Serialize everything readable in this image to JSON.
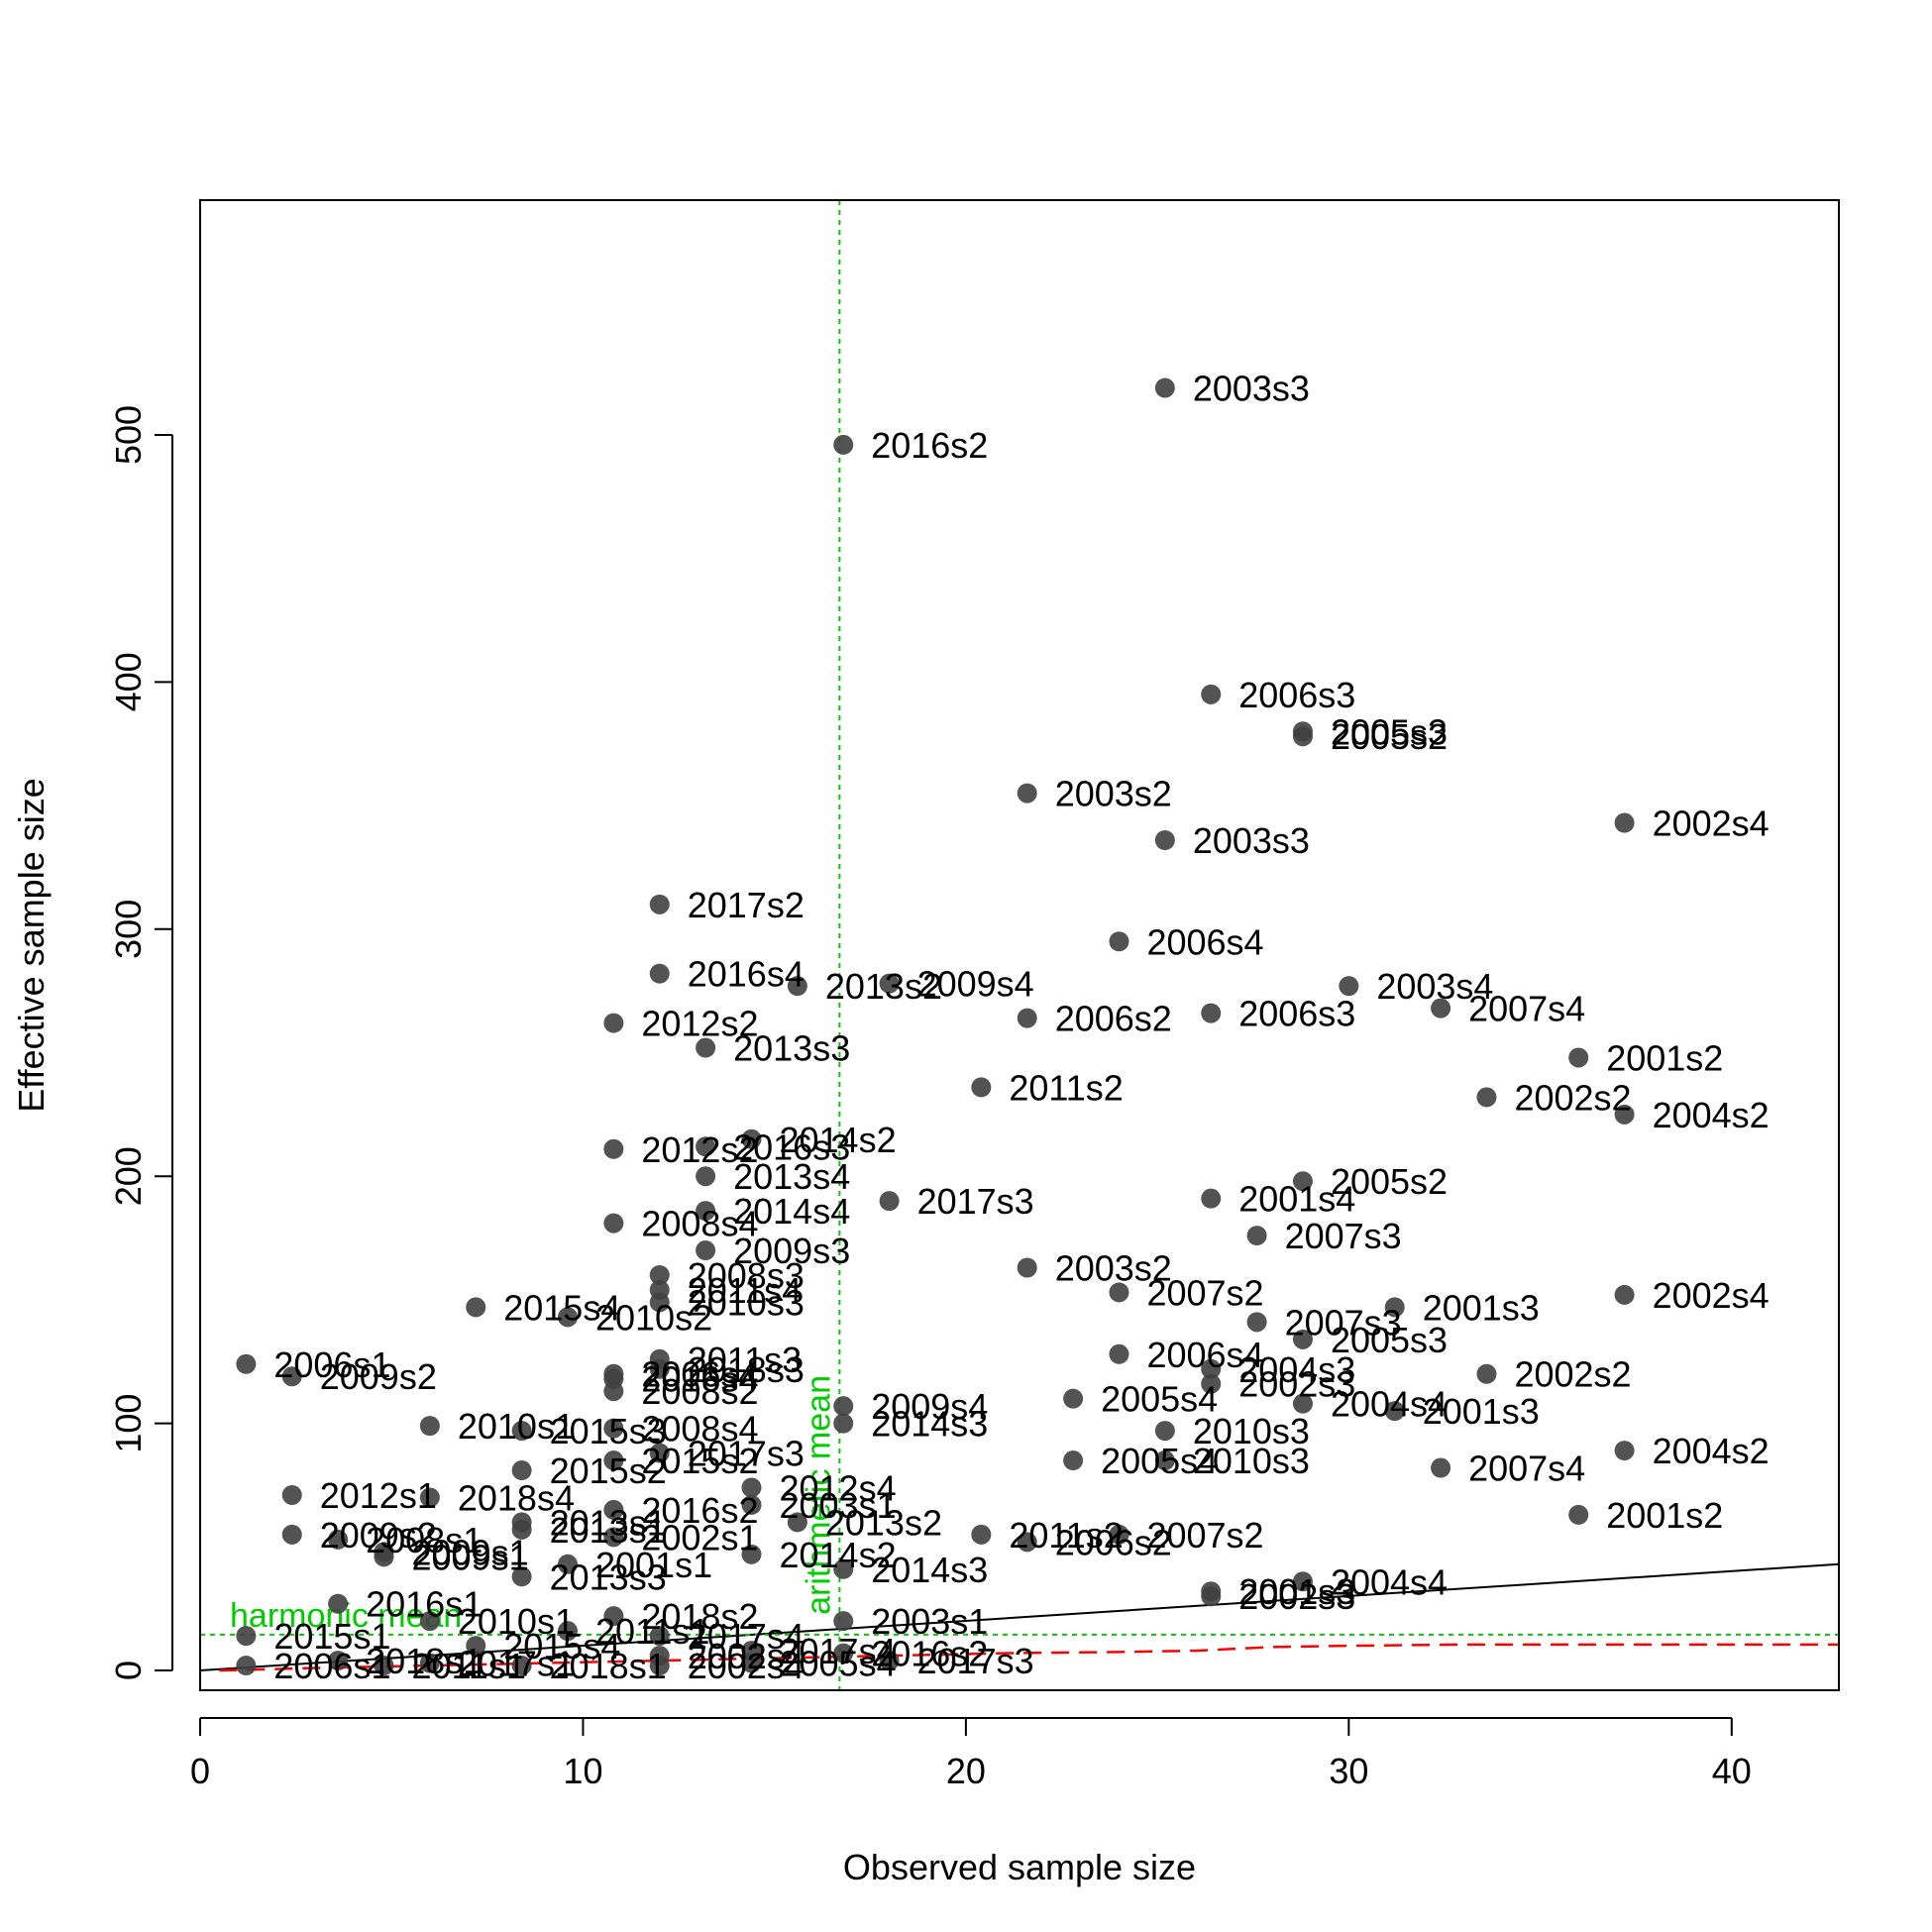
{
  "chart_data": {
    "type": "scatter",
    "xlabel": "Observed sample size",
    "ylabel": "Effective sample size",
    "xlim": [
      0,
      42.8
    ],
    "ylim": [
      -8,
      595
    ],
    "x_ticks": [
      0,
      10,
      20,
      30,
      40
    ],
    "y_ticks": [
      0,
      100,
      200,
      300,
      400,
      500
    ],
    "grid": false,
    "legend": "none",
    "point_color": "#404040",
    "reference_lines": {
      "arithmetic_mean": {
        "label": "arithmetic mean",
        "x": 16.7,
        "color": "#00cc00"
      },
      "harmonic_mean": {
        "label": "harmonic mean",
        "y": 14.5,
        "color": "#00cc00"
      },
      "one_to_one": {
        "color": "#000000",
        "x": [
          0,
          42.8
        ],
        "y": [
          0,
          43
        ]
      },
      "loess_fit": {
        "color": "#ff0000",
        "x": [
          0.5,
          3,
          6,
          9,
          12,
          15,
          18,
          21,
          24,
          26,
          28,
          30,
          33,
          36,
          39,
          42.8
        ],
        "y": [
          0,
          1,
          2,
          3,
          4,
          5,
          6,
          7,
          7.5,
          8,
          9.5,
          10,
          10.5,
          10.5,
          10.5,
          10.5
        ]
      }
    },
    "points": [
      {
        "x": 25.2,
        "y": 519,
        "label": "2003s3"
      },
      {
        "x": 16.8,
        "y": 496,
        "label": "2016s2"
      },
      {
        "x": 26.4,
        "y": 395,
        "label": "2006s3"
      },
      {
        "x": 28.8,
        "y": 380,
        "label": "2005s3"
      },
      {
        "x": 28.8,
        "y": 378,
        "label": "2005s2"
      },
      {
        "x": 21.6,
        "y": 355,
        "label": "2003s2"
      },
      {
        "x": 37.2,
        "y": 343,
        "label": "2002s4"
      },
      {
        "x": 25.2,
        "y": 336,
        "label": "2003s3"
      },
      {
        "x": 12.0,
        "y": 310,
        "label": "2017s2"
      },
      {
        "x": 24.0,
        "y": 295,
        "label": "2006s4"
      },
      {
        "x": 12.0,
        "y": 282,
        "label": "2016s4"
      },
      {
        "x": 15.6,
        "y": 277,
        "label": "2013s2"
      },
      {
        "x": 18.0,
        "y": 278,
        "label": "2009s4"
      },
      {
        "x": 30.0,
        "y": 277,
        "label": "2003s4"
      },
      {
        "x": 32.4,
        "y": 268,
        "label": "2007s4"
      },
      {
        "x": 21.6,
        "y": 264,
        "label": "2006s2"
      },
      {
        "x": 26.4,
        "y": 266,
        "label": "2006s3"
      },
      {
        "x": 10.8,
        "y": 262,
        "label": "2012s2"
      },
      {
        "x": 13.2,
        "y": 252,
        "label": "2013s3"
      },
      {
        "x": 36.0,
        "y": 248,
        "label": "2001s2"
      },
      {
        "x": 20.4,
        "y": 236,
        "label": "2011s2"
      },
      {
        "x": 33.6,
        "y": 232,
        "label": "2002s2"
      },
      {
        "x": 37.2,
        "y": 225,
        "label": "2004s2"
      },
      {
        "x": 14.4,
        "y": 215,
        "label": "2014s2"
      },
      {
        "x": 13.2,
        "y": 212,
        "label": "2016s3"
      },
      {
        "x": 10.8,
        "y": 211,
        "label": "2012s2"
      },
      {
        "x": 13.2,
        "y": 200,
        "label": "2013s4"
      },
      {
        "x": 28.8,
        "y": 198,
        "label": "2005s2"
      },
      {
        "x": 26.4,
        "y": 191,
        "label": "2001s4"
      },
      {
        "x": 18.0,
        "y": 190,
        "label": "2017s3"
      },
      {
        "x": 13.2,
        "y": 186,
        "label": "2014s4"
      },
      {
        "x": 10.8,
        "y": 181,
        "label": "2008s4"
      },
      {
        "x": 27.6,
        "y": 176,
        "label": "2007s3"
      },
      {
        "x": 13.2,
        "y": 170,
        "label": "2009s3"
      },
      {
        "x": 21.6,
        "y": 163,
        "label": "2003s2"
      },
      {
        "x": 12.0,
        "y": 160,
        "label": "2008s3"
      },
      {
        "x": 12.0,
        "y": 154,
        "label": "2011s4"
      },
      {
        "x": 24.0,
        "y": 153,
        "label": "2007s2"
      },
      {
        "x": 37.2,
        "y": 152,
        "label": "2002s4"
      },
      {
        "x": 12.0,
        "y": 149,
        "label": "2010s3"
      },
      {
        "x": 7.2,
        "y": 147,
        "label": "2015s4"
      },
      {
        "x": 31.2,
        "y": 147,
        "label": "2001s3"
      },
      {
        "x": 9.6,
        "y": 143,
        "label": "2010s2"
      },
      {
        "x": 27.6,
        "y": 141,
        "label": "2007s3"
      },
      {
        "x": 28.8,
        "y": 134,
        "label": "2005s3"
      },
      {
        "x": 24.0,
        "y": 128,
        "label": "2006s4"
      },
      {
        "x": 12.0,
        "y": 126,
        "label": "2011s3"
      },
      {
        "x": 1.2,
        "y": 124,
        "label": "2006s1"
      },
      {
        "x": 12.0,
        "y": 122,
        "label": "2018s3"
      },
      {
        "x": 26.4,
        "y": 122,
        "label": "2004s3"
      },
      {
        "x": 33.6,
        "y": 120,
        "label": "2002s2"
      },
      {
        "x": 2.4,
        "y": 119,
        "label": "2009s2"
      },
      {
        "x": 10.8,
        "y": 120,
        "label": "2006s4"
      },
      {
        "x": 10.8,
        "y": 118,
        "label": "2016s4"
      },
      {
        "x": 26.4,
        "y": 116,
        "label": "2002s3"
      },
      {
        "x": 10.8,
        "y": 113,
        "label": "2008s2"
      },
      {
        "x": 22.8,
        "y": 110,
        "label": "2005s4"
      },
      {
        "x": 28.8,
        "y": 108,
        "label": "2004s4"
      },
      {
        "x": 16.8,
        "y": 107,
        "label": "2009s4"
      },
      {
        "x": 31.2,
        "y": 105,
        "label": "2001s3"
      },
      {
        "x": 16.8,
        "y": 100,
        "label": "2014s3"
      },
      {
        "x": 6.0,
        "y": 99,
        "label": "2010s1"
      },
      {
        "x": 10.8,
        "y": 98,
        "label": "2008s4"
      },
      {
        "x": 25.2,
        "y": 97,
        "label": "2010s3"
      },
      {
        "x": 8.4,
        "y": 97,
        "label": "2015s3"
      },
      {
        "x": 37.2,
        "y": 89,
        "label": "2004s2"
      },
      {
        "x": 12.0,
        "y": 88,
        "label": "2017s3"
      },
      {
        "x": 22.8,
        "y": 85,
        "label": "2005s4"
      },
      {
        "x": 10.8,
        "y": 85,
        "label": "2015s2"
      },
      {
        "x": 25.2,
        "y": 85,
        "label": "2010s3"
      },
      {
        "x": 32.4,
        "y": 82,
        "label": "2007s4"
      },
      {
        "x": 8.4,
        "y": 81,
        "label": "2015s2"
      },
      {
        "x": 14.4,
        "y": 74,
        "label": "2012s4"
      },
      {
        "x": 2.4,
        "y": 71,
        "label": "2012s1"
      },
      {
        "x": 6.0,
        "y": 70,
        "label": "2018s4"
      },
      {
        "x": 14.4,
        "y": 67,
        "label": "2003s1"
      },
      {
        "x": 10.8,
        "y": 65,
        "label": "2016s2"
      },
      {
        "x": 36.0,
        "y": 63,
        "label": "2001s2"
      },
      {
        "x": 8.4,
        "y": 60,
        "label": "2013s1"
      },
      {
        "x": 15.6,
        "y": 60,
        "label": "2013s2"
      },
      {
        "x": 8.4,
        "y": 57,
        "label": "2013s1"
      },
      {
        "x": 2.4,
        "y": 55,
        "label": "2009s2"
      },
      {
        "x": 20.4,
        "y": 55,
        "label": "2011s2"
      },
      {
        "x": 24.0,
        "y": 55,
        "label": "2007s2"
      },
      {
        "x": 10.8,
        "y": 54,
        "label": "2002s1"
      },
      {
        "x": 3.6,
        "y": 53,
        "label": "2008s1"
      },
      {
        "x": 21.6,
        "y": 52,
        "label": "2006s2"
      },
      {
        "x": 4.8,
        "y": 48,
        "label": "2009s1"
      },
      {
        "x": 14.4,
        "y": 47,
        "label": "2014s2"
      },
      {
        "x": 4.8,
        "y": 46,
        "label": "2009s1"
      },
      {
        "x": 9.6,
        "y": 43,
        "label": "2001s1"
      },
      {
        "x": 16.8,
        "y": 41,
        "label": "2014s3"
      },
      {
        "x": 8.4,
        "y": 38,
        "label": "2013s3"
      },
      {
        "x": 28.8,
        "y": 36,
        "label": "2004s4"
      },
      {
        "x": 26.4,
        "y": 32,
        "label": "2001s3"
      },
      {
        "x": 26.4,
        "y": 30,
        "label": "2002s3"
      },
      {
        "x": 3.6,
        "y": 27,
        "label": "2016s1"
      },
      {
        "x": 10.8,
        "y": 22,
        "label": "2018s2"
      },
      {
        "x": 16.8,
        "y": 20,
        "label": "2003s1"
      },
      {
        "x": 6.0,
        "y": 20,
        "label": "2010s1"
      },
      {
        "x": 9.6,
        "y": 16,
        "label": "2011s1"
      },
      {
        "x": 1.2,
        "y": 14,
        "label": "2015s1"
      },
      {
        "x": 12.0,
        "y": 14,
        "label": "2017s4"
      },
      {
        "x": 7.2,
        "y": 10,
        "label": "2015s4"
      },
      {
        "x": 14.4,
        "y": 8,
        "label": "2017s4"
      },
      {
        "x": 12.0,
        "y": 6,
        "label": "2002s4"
      },
      {
        "x": 16.8,
        "y": 7,
        "label": "2016s2"
      },
      {
        "x": 18.0,
        "y": 4,
        "label": "2017s3"
      },
      {
        "x": 3.6,
        "y": 4,
        "label": "2018s1"
      },
      {
        "x": 6.0,
        "y": 3,
        "label": "2017s1"
      },
      {
        "x": 1.2,
        "y": 2,
        "label": "2006s1"
      },
      {
        "x": 8.4,
        "y": 2,
        "label": "2018s1"
      },
      {
        "x": 12.0,
        "y": 2,
        "label": "2002s4"
      },
      {
        "x": 14.4,
        "y": 3,
        "label": "2005s4"
      },
      {
        "x": 4.8,
        "y": 2,
        "label": "2011s1"
      }
    ]
  }
}
